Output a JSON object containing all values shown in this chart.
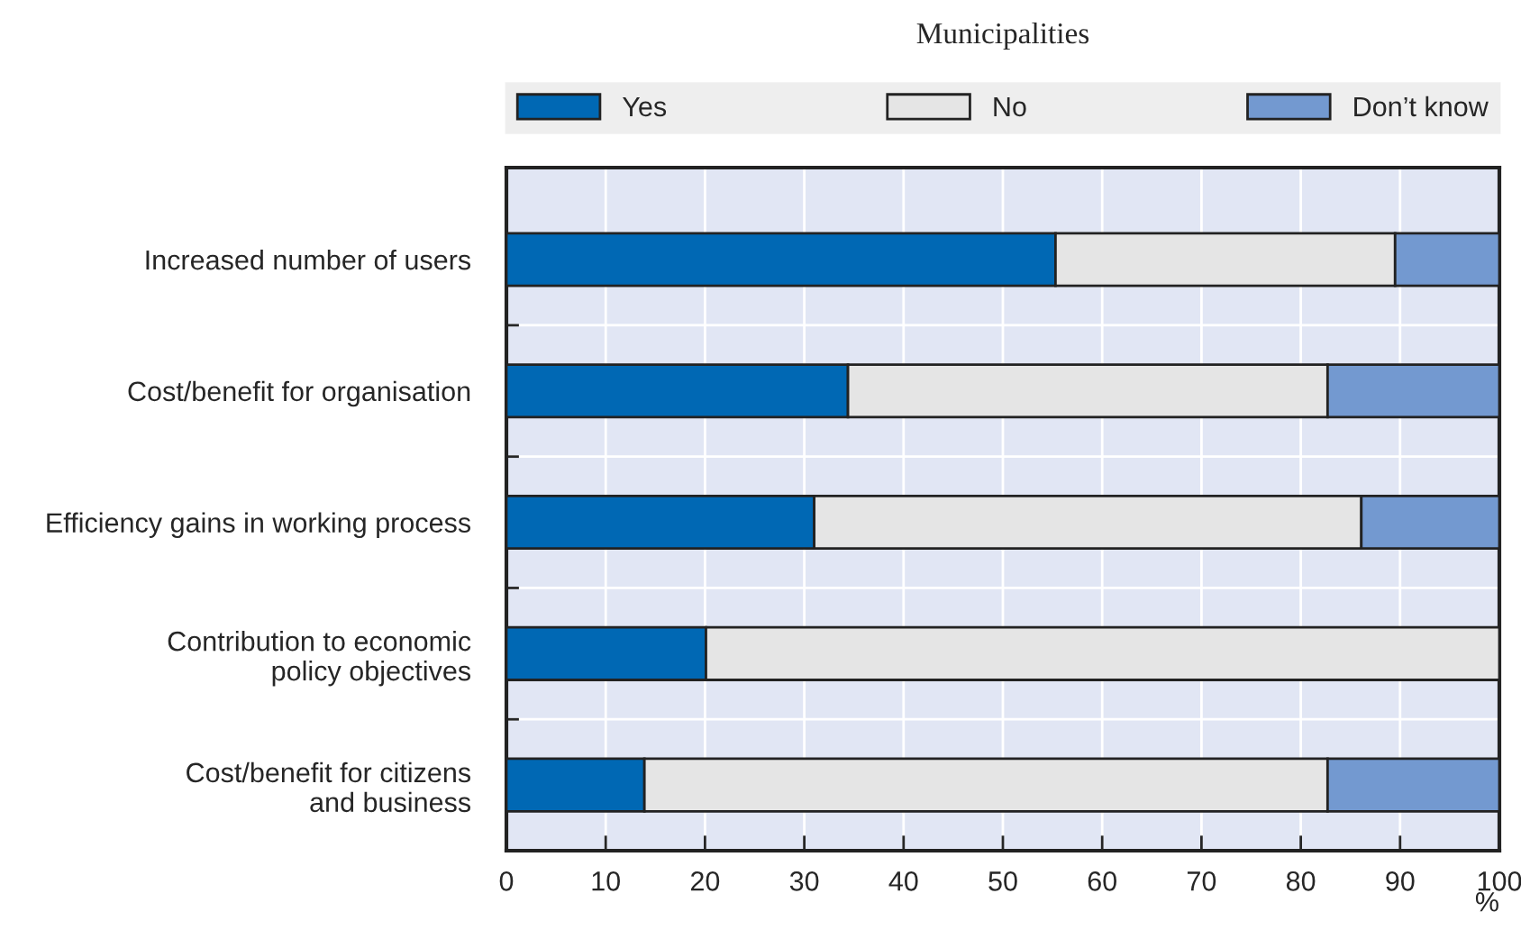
{
  "chart_data": {
    "type": "bar",
    "orientation": "horizontal",
    "stacked": true,
    "title": "Municipalities",
    "xlabel": "%",
    "categories": [
      "Increased number of users",
      "Cost/benefit for organisation",
      "Efficiency gains in working process",
      "Contribution to economic\npolicy objectives",
      "Cost/benefit for citizens\nand business"
    ],
    "series": [
      {
        "name": "Yes",
        "color": "#0068b4",
        "values": [
          55.3,
          34.4,
          31,
          20.1,
          13.9
        ]
      },
      {
        "name": "No",
        "color": "#e5e5e5",
        "values": [
          34.2,
          48.3,
          55.1,
          79.9,
          68.8
        ]
      },
      {
        "name": "Don’t know",
        "color": "#7399d0",
        "values": [
          10.5,
          17.3,
          13.9,
          0,
          17.3
        ]
      }
    ],
    "xlim": [
      0,
      100
    ],
    "xticks": [
      0,
      10,
      20,
      30,
      40,
      50,
      60,
      70,
      80,
      90,
      100
    ],
    "grid": true,
    "legend": "top"
  }
}
